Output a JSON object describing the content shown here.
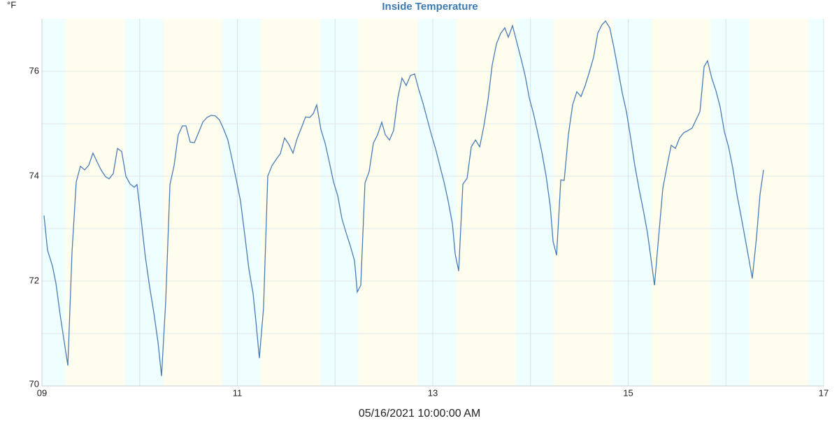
{
  "chart_data": {
    "type": "line",
    "title": "Inside Temperature",
    "y_unit": "°F",
    "x_label": "05/16/2021 10:00:00 AM",
    "xlim": [
      9,
      17
    ],
    "xticks": [
      {
        "value": 9,
        "label": "09"
      },
      11,
      13,
      15,
      17
    ],
    "x_minor_ticks": [
      10,
      12,
      14,
      16
    ],
    "ylim": [
      70,
      77
    ],
    "yticks": [
      70,
      72,
      74,
      76
    ],
    "y_minor_ticks": [
      71,
      73,
      75
    ],
    "grid": true,
    "shading": {
      "night_color": "#effefe",
      "day_color": "#fefdee",
      "night": [
        [
          9,
          9.24
        ],
        [
          9.845,
          10.24
        ],
        [
          10.845,
          11.24
        ],
        [
          11.845,
          12.24
        ],
        [
          12.845,
          13.24
        ],
        [
          13.845,
          14.24
        ],
        [
          14.845,
          15.24
        ],
        [
          15.845,
          16.24
        ],
        [
          16.845,
          17
        ]
      ],
      "day": [
        [
          9.24,
          9.845
        ],
        [
          10.24,
          10.845
        ],
        [
          11.24,
          11.845
        ],
        [
          12.24,
          12.845
        ],
        [
          13.24,
          13.845
        ],
        [
          14.24,
          14.845
        ],
        [
          15.24,
          15.845
        ],
        [
          16.24,
          16.845
        ]
      ]
    },
    "x": [
      9.021,
      9.057,
      9.107,
      9.143,
      9.186,
      9.229,
      9.265,
      9.308,
      9.351,
      9.394,
      9.437,
      9.479,
      9.522,
      9.565,
      9.608,
      9.651,
      9.687,
      9.73,
      9.773,
      9.816,
      9.859,
      9.902,
      9.945,
      9.973,
      10.016,
      10.059,
      10.102,
      10.145,
      10.188,
      10.224,
      10.267,
      10.31,
      10.352,
      10.395,
      10.438,
      10.474,
      10.517,
      10.56,
      10.603,
      10.646,
      10.689,
      10.732,
      10.775,
      10.818,
      10.861,
      10.903,
      10.946,
      10.989,
      11.032,
      11.075,
      11.118,
      11.161,
      11.19,
      11.225,
      11.268,
      11.311,
      11.354,
      11.397,
      11.44,
      11.483,
      11.526,
      11.569,
      11.612,
      11.655,
      11.698,
      11.741,
      11.776,
      11.812,
      11.855,
      11.898,
      11.941,
      11.984,
      12.027,
      12.07,
      12.113,
      12.156,
      12.199,
      12.227,
      12.263,
      12.306,
      12.349,
      12.392,
      12.435,
      12.478,
      12.514,
      12.557,
      12.599,
      12.642,
      12.685,
      12.728,
      12.771,
      12.814,
      12.857,
      12.9,
      12.943,
      12.986,
      13.029,
      13.072,
      13.115,
      13.158,
      13.201,
      13.229,
      13.265,
      13.308,
      13.351,
      13.394,
      13.437,
      13.48,
      13.523,
      13.565,
      13.608,
      13.651,
      13.694,
      13.737,
      13.773,
      13.816,
      13.859,
      13.902,
      13.945,
      13.988,
      14.031,
      14.074,
      14.117,
      14.16,
      14.202,
      14.231,
      14.267,
      14.31,
      14.345,
      14.388,
      14.431,
      14.474,
      14.517,
      14.56,
      14.603,
      14.646,
      14.689,
      14.732,
      14.768,
      14.811,
      14.854,
      14.896,
      14.939,
      14.982,
      15.025,
      15.068,
      15.111,
      15.154,
      15.197,
      15.233,
      15.269,
      15.311,
      15.354,
      15.397,
      15.44,
      15.483,
      15.526,
      15.569,
      15.612,
      15.655,
      15.698,
      15.734,
      15.777,
      15.812,
      15.855,
      15.898,
      15.941,
      15.984,
      16.027,
      16.07,
      16.113,
      16.156,
      16.199,
      16.234,
      16.27,
      16.313,
      16.349,
      16.385
    ],
    "series": [
      {
        "name": "Inside Temperature",
        "color": "#4a7db5",
        "values": [
          73.25,
          72.59,
          72.29,
          71.96,
          71.36,
          70.83,
          70.39,
          72.56,
          73.89,
          74.19,
          74.12,
          74.21,
          74.44,
          74.27,
          74.11,
          73.99,
          73.95,
          74.05,
          74.53,
          74.47,
          74.0,
          73.85,
          73.79,
          73.84,
          73.16,
          72.45,
          71.89,
          71.4,
          70.83,
          70.19,
          71.63,
          73.84,
          74.2,
          74.79,
          74.96,
          74.96,
          74.65,
          74.64,
          74.83,
          75.03,
          75.12,
          75.16,
          75.15,
          75.07,
          74.89,
          74.69,
          74.32,
          73.93,
          73.53,
          72.89,
          72.23,
          71.76,
          71.23,
          70.53,
          71.49,
          74.0,
          74.2,
          74.32,
          74.43,
          74.73,
          74.61,
          74.44,
          74.72,
          74.92,
          75.13,
          75.12,
          75.19,
          75.36,
          74.89,
          74.63,
          74.27,
          73.89,
          73.63,
          73.19,
          72.92,
          72.67,
          72.39,
          71.79,
          71.92,
          73.87,
          74.09,
          74.63,
          74.79,
          75.03,
          74.79,
          74.69,
          74.87,
          75.49,
          75.87,
          75.73,
          75.92,
          75.95,
          75.65,
          75.39,
          75.09,
          74.79,
          74.52,
          74.2,
          73.89,
          73.52,
          73.09,
          72.52,
          72.19,
          73.85,
          73.96,
          74.56,
          74.69,
          74.56,
          74.96,
          75.45,
          76.12,
          76.52,
          76.72,
          76.83,
          76.65,
          76.87,
          76.56,
          76.25,
          75.92,
          75.49,
          75.19,
          74.83,
          74.45,
          74.0,
          73.43,
          72.76,
          72.49,
          73.93,
          73.92,
          74.79,
          75.36,
          75.61,
          75.52,
          75.73,
          75.99,
          76.27,
          76.73,
          76.89,
          76.96,
          76.83,
          76.45,
          76.03,
          75.59,
          75.23,
          74.73,
          74.2,
          73.76,
          73.36,
          72.92,
          72.43,
          71.92,
          72.83,
          73.76,
          74.19,
          74.59,
          74.53,
          74.73,
          74.83,
          74.87,
          74.92,
          75.09,
          75.23,
          76.09,
          76.2,
          75.87,
          75.63,
          75.32,
          74.85,
          74.56,
          74.16,
          73.65,
          73.23,
          72.79,
          72.43,
          72.05,
          72.83,
          73.65,
          74.12
        ]
      }
    ]
  }
}
